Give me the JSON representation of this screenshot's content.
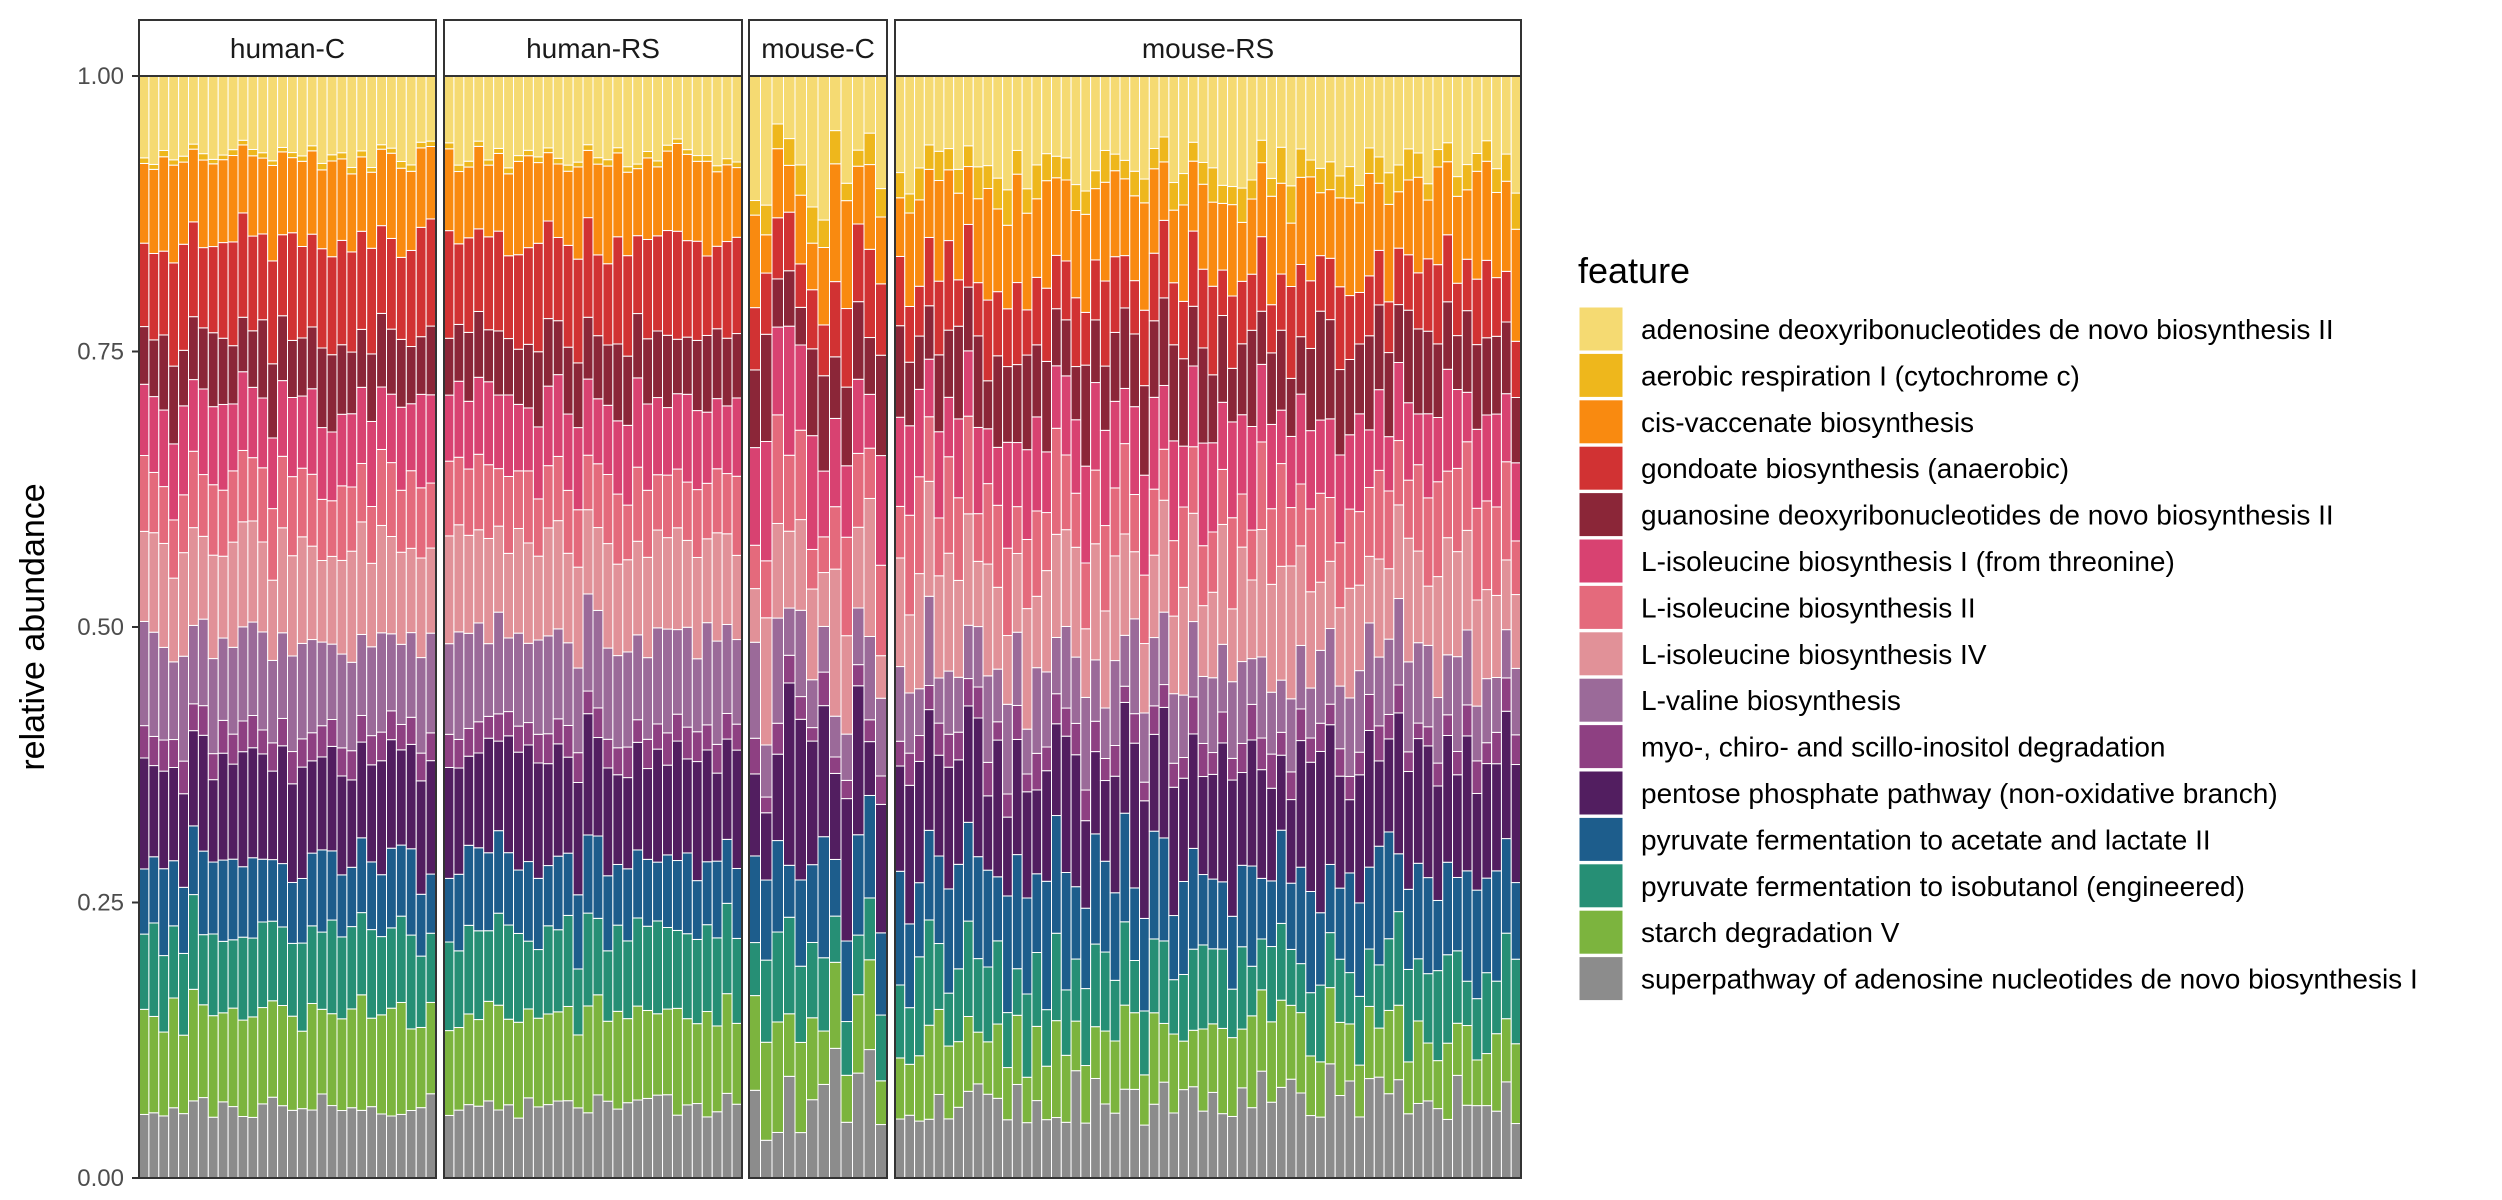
{
  "chart_data": {
    "type": "bar",
    "stacked": true,
    "ylabel": "relative abundance",
    "ylim": [
      0,
      1
    ],
    "yticks": [
      "0.00",
      "0.25",
      "0.50",
      "0.75",
      "1.00"
    ],
    "legend_title": "feature",
    "legend_position": "right",
    "facets": [
      {
        "label": "human-C",
        "n_samples": 30,
        "group": "human"
      },
      {
        "label": "human-RS",
        "n_samples": 30,
        "group": "human"
      },
      {
        "label": "mouse-C",
        "n_samples": 12,
        "group": "mouse"
      },
      {
        "label": "mouse-RS",
        "n_samples": 64,
        "group": "mouse"
      }
    ],
    "features": [
      {
        "name": "adenosine deoxyribonucleotides de novo biosynthesis II",
        "color": "#F5DA72"
      },
      {
        "name": "aerobic respiration I (cytochrome c)",
        "color": "#EEB71C"
      },
      {
        "name": "cis-vaccenate biosynthesis",
        "color": "#F98A10"
      },
      {
        "name": "gondoate biosynthesis (anaerobic)",
        "color": "#D13233"
      },
      {
        "name": "guanosine deoxyribonucleotides de novo biosynthesis II",
        "color": "#8B2638"
      },
      {
        "name": "L-isoleucine biosynthesis I (from threonine)",
        "color": "#D84271"
      },
      {
        "name": "L-isoleucine biosynthesis II",
        "color": "#E46A7C"
      },
      {
        "name": "L-isoleucine biosynthesis IV",
        "color": "#E19198"
      },
      {
        "name": "L-valine biosynthesis",
        "color": "#9B6A99"
      },
      {
        "name": "myo-, chiro- and scillo-inositol degradation",
        "color": "#8E4082"
      },
      {
        "name": "pentose phosphate pathway (non-oxidative branch)",
        "color": "#521E60"
      },
      {
        "name": "pyruvate fermentation to acetate and lactate II",
        "color": "#1D5D8C"
      },
      {
        "name": "pyruvate fermentation to isobutanol (engineered)",
        "color": "#268F75"
      },
      {
        "name": "starch degradation V",
        "color": "#7CB43E"
      },
      {
        "name": "superpathway of adenosine nucleotides de novo biosynthesis I",
        "color": "#8C8C8C"
      }
    ],
    "mean_composition": {
      "human": [
        0.07,
        0.005,
        0.075,
        0.085,
        0.06,
        0.07,
        0.06,
        0.085,
        0.08,
        0.025,
        0.095,
        0.065,
        0.075,
        0.085,
        0.065
      ],
      "mouse": [
        0.085,
        0.025,
        0.08,
        0.065,
        0.07,
        0.075,
        0.07,
        0.09,
        0.065,
        0.025,
        0.105,
        0.085,
        0.07,
        0.065,
        0.075
      ]
    }
  }
}
